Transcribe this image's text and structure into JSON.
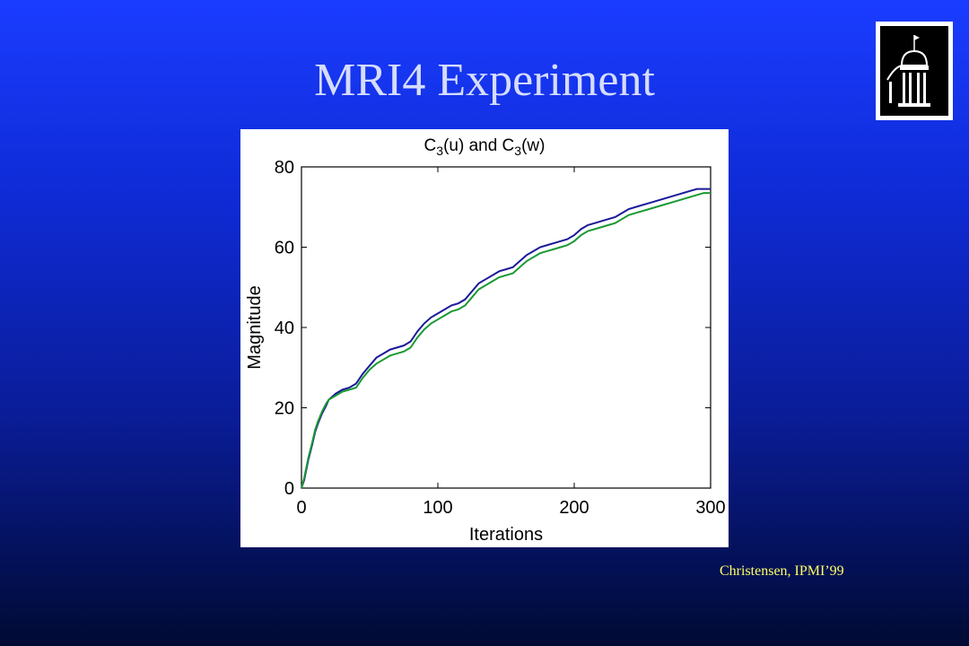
{
  "slide": {
    "title": "MRI4 Experiment",
    "credit": "Christensen, IPMI’99",
    "logo_icon": "university-dome-logo-icon"
  },
  "chart_data": {
    "type": "line",
    "title_parts": {
      "a": "C",
      "a_sub": "3",
      "a_rest": "(u) and ",
      "b": "C",
      "b_sub": "3",
      "b_rest": "(w)"
    },
    "xlabel": "Iterations",
    "ylabel": "Magnitude",
    "xlim": [
      0,
      300
    ],
    "ylim": [
      0,
      80
    ],
    "xticks": [
      0,
      100,
      200,
      300
    ],
    "yticks": [
      0,
      20,
      40,
      60,
      80
    ],
    "grid": false,
    "series": [
      {
        "color": "#1a1a99",
        "x": [
          0,
          2,
          5,
          8,
          10,
          12,
          15,
          18,
          20,
          25,
          30,
          35,
          40,
          45,
          50,
          55,
          60,
          65,
          70,
          75,
          80,
          85,
          90,
          95,
          100,
          105,
          110,
          115,
          120,
          125,
          130,
          135,
          140,
          145,
          150,
          155,
          160,
          165,
          170,
          175,
          180,
          185,
          190,
          195,
          200,
          205,
          210,
          215,
          220,
          225,
          230,
          235,
          240,
          245,
          250,
          255,
          260,
          265,
          270,
          275,
          280,
          285,
          290,
          295,
          300
        ],
        "values": [
          0,
          2,
          7,
          11,
          14,
          16,
          18.5,
          20.5,
          22,
          23.5,
          24.5,
          25,
          26,
          28.5,
          30.5,
          32.5,
          33.5,
          34.5,
          35,
          35.5,
          36.5,
          39,
          41,
          42.5,
          43.5,
          44.5,
          45.5,
          46,
          47,
          49,
          51,
          52,
          53,
          54,
          54.5,
          55,
          56.5,
          58,
          59,
          60,
          60.5,
          61,
          61.5,
          62,
          63,
          64.5,
          65.5,
          66,
          66.5,
          67,
          67.5,
          68.5,
          69.5,
          70,
          70.5,
          71,
          71.5,
          72,
          72.5,
          73,
          73.5,
          74,
          74.5,
          74.5,
          74.5
        ]
      },
      {
        "color": "#1a9933",
        "x": [
          0,
          2,
          5,
          8,
          10,
          12,
          15,
          18,
          20,
          25,
          30,
          35,
          40,
          45,
          50,
          55,
          60,
          65,
          70,
          75,
          80,
          85,
          90,
          95,
          100,
          105,
          110,
          115,
          120,
          125,
          130,
          135,
          140,
          145,
          150,
          155,
          160,
          165,
          170,
          175,
          180,
          185,
          190,
          195,
          200,
          205,
          210,
          215,
          220,
          225,
          230,
          235,
          240,
          245,
          250,
          255,
          260,
          265,
          270,
          275,
          280,
          285,
          290,
          295,
          300
        ],
        "values": [
          0,
          2.5,
          7.5,
          11.5,
          14.5,
          16.5,
          19,
          21,
          22,
          23,
          24,
          24.5,
          25,
          27.5,
          29.5,
          31,
          32,
          33,
          33.5,
          34,
          35,
          37.5,
          39.5,
          41,
          42,
          43,
          44,
          44.5,
          45.5,
          47.5,
          49.5,
          50.5,
          51.5,
          52.5,
          53,
          53.5,
          55,
          56.5,
          57.5,
          58.5,
          59,
          59.5,
          60,
          60.5,
          61.5,
          63,
          64,
          64.5,
          65,
          65.5,
          66,
          67,
          68,
          68.5,
          69,
          69.5,
          70,
          70.5,
          71,
          71.5,
          72,
          72.5,
          73,
          73.5,
          73.5
        ]
      }
    ]
  }
}
